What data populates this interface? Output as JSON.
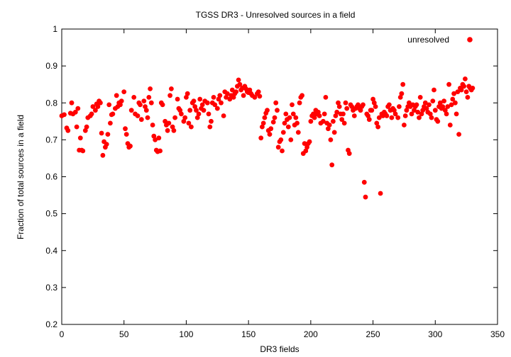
{
  "chart_data": {
    "type": "scatter",
    "title": "TGSS DR3 - Unresolved sources in a field",
    "xlabel": "DR3 fields",
    "ylabel": "Fraction of total sources in a field",
    "xlim": [
      0,
      350
    ],
    "ylim": [
      0.2,
      1
    ],
    "xticks": [
      "0",
      "50",
      "100",
      "150",
      "200",
      "250",
      "300",
      "350"
    ],
    "yticks": [
      "0.2",
      "0.3",
      "0.4",
      "0.5",
      "0.6",
      "0.7",
      "0.8",
      "0.9",
      "1"
    ],
    "grid": false,
    "legend_position": "top-right",
    "series": [
      {
        "name": "unresolved",
        "color": "#ff0000",
        "points": [
          [
            0,
            0.765
          ],
          [
            2,
            0.768
          ],
          [
            4,
            0.732
          ],
          [
            5,
            0.725
          ],
          [
            7,
            0.772
          ],
          [
            8,
            0.8
          ],
          [
            9,
            0.77
          ],
          [
            11,
            0.775
          ],
          [
            12,
            0.735
          ],
          [
            13,
            0.785
          ],
          [
            14,
            0.672
          ],
          [
            15,
            0.705
          ],
          [
            16,
            0.672
          ],
          [
            17,
            0.67
          ],
          [
            19,
            0.725
          ],
          [
            20,
            0.735
          ],
          [
            21,
            0.76
          ],
          [
            23,
            0.765
          ],
          [
            24,
            0.77
          ],
          [
            25,
            0.79
          ],
          [
            27,
            0.78
          ],
          [
            28,
            0.797
          ],
          [
            29,
            0.79
          ],
          [
            30,
            0.805
          ],
          [
            31,
            0.8
          ],
          [
            32,
            0.718
          ],
          [
            33,
            0.658
          ],
          [
            34,
            0.695
          ],
          [
            35,
            0.68
          ],
          [
            36,
            0.688
          ],
          [
            37,
            0.715
          ],
          [
            38,
            0.795
          ],
          [
            39,
            0.745
          ],
          [
            40,
            0.768
          ],
          [
            41,
            0.77
          ],
          [
            43,
            0.785
          ],
          [
            44,
            0.82
          ],
          [
            45,
            0.79
          ],
          [
            46,
            0.8
          ],
          [
            47,
            0.795
          ],
          [
            48,
            0.805
          ],
          [
            50,
            0.83
          ],
          [
            51,
            0.73
          ],
          [
            52,
            0.715
          ],
          [
            53,
            0.69
          ],
          [
            54,
            0.68
          ],
          [
            55,
            0.683
          ],
          [
            56,
            0.78
          ],
          [
            58,
            0.815
          ],
          [
            59,
            0.77
          ],
          [
            61,
            0.765
          ],
          [
            62,
            0.8
          ],
          [
            63,
            0.795
          ],
          [
            64,
            0.755
          ],
          [
            66,
            0.805
          ],
          [
            67,
            0.79
          ],
          [
            68,
            0.78
          ],
          [
            69,
            0.76
          ],
          [
            70,
            0.815
          ],
          [
            71,
            0.838
          ],
          [
            72,
            0.8
          ],
          [
            73,
            0.74
          ],
          [
            74,
            0.71
          ],
          [
            75,
            0.7
          ],
          [
            76,
            0.672
          ],
          [
            77,
            0.668
          ],
          [
            78,
            0.705
          ],
          [
            79,
            0.67
          ],
          [
            80,
            0.8
          ],
          [
            81,
            0.795
          ],
          [
            83,
            0.75
          ],
          [
            84,
            0.74
          ],
          [
            85,
            0.725
          ],
          [
            86,
            0.745
          ],
          [
            87,
            0.82
          ],
          [
            88,
            0.838
          ],
          [
            89,
            0.735
          ],
          [
            90,
            0.725
          ],
          [
            91,
            0.76
          ],
          [
            93,
            0.81
          ],
          [
            94,
            0.785
          ],
          [
            95,
            0.78
          ],
          [
            96,
            0.77
          ],
          [
            98,
            0.75
          ],
          [
            99,
            0.76
          ],
          [
            100,
            0.815
          ],
          [
            101,
            0.825
          ],
          [
            102,
            0.745
          ],
          [
            103,
            0.78
          ],
          [
            104,
            0.735
          ],
          [
            105,
            0.8
          ],
          [
            106,
            0.805
          ],
          [
            107,
            0.79
          ],
          [
            108,
            0.78
          ],
          [
            109,
            0.76
          ],
          [
            110,
            0.77
          ],
          [
            111,
            0.81
          ],
          [
            112,
            0.785
          ],
          [
            113,
            0.795
          ],
          [
            114,
            0.78
          ],
          [
            115,
            0.805
          ],
          [
            117,
            0.8
          ],
          [
            118,
            0.77
          ],
          [
            119,
            0.735
          ],
          [
            120,
            0.75
          ],
          [
            121,
            0.8
          ],
          [
            122,
            0.815
          ],
          [
            123,
            0.795
          ],
          [
            125,
            0.785
          ],
          [
            126,
            0.81
          ],
          [
            127,
            0.82
          ],
          [
            128,
            0.8
          ],
          [
            130,
            0.765
          ],
          [
            131,
            0.83
          ],
          [
            132,
            0.815
          ],
          [
            133,
            0.825
          ],
          [
            135,
            0.81
          ],
          [
            136,
            0.82
          ],
          [
            137,
            0.835
          ],
          [
            138,
            0.815
          ],
          [
            139,
            0.825
          ],
          [
            140,
            0.83
          ],
          [
            141,
            0.845
          ],
          [
            142,
            0.862
          ],
          [
            143,
            0.85
          ],
          [
            144,
            0.835
          ],
          [
            145,
            0.84
          ],
          [
            146,
            0.82
          ],
          [
            147,
            0.845
          ],
          [
            148,
            0.838
          ],
          [
            149,
            0.83
          ],
          [
            150,
            0.828
          ],
          [
            151,
            0.835
          ],
          [
            152,
            0.825
          ],
          [
            153,
            0.82
          ],
          [
            155,
            0.815
          ],
          [
            157,
            0.825
          ],
          [
            158,
            0.83
          ],
          [
            159,
            0.818
          ],
          [
            160,
            0.705
          ],
          [
            161,
            0.735
          ],
          [
            162,
            0.745
          ],
          [
            163,
            0.76
          ],
          [
            164,
            0.772
          ],
          [
            165,
            0.78
          ],
          [
            166,
            0.725
          ],
          [
            167,
            0.715
          ],
          [
            168,
            0.73
          ],
          [
            170,
            0.748
          ],
          [
            171,
            0.76
          ],
          [
            172,
            0.8
          ],
          [
            173,
            0.78
          ],
          [
            174,
            0.68
          ],
          [
            175,
            0.695
          ],
          [
            176,
            0.7
          ],
          [
            177,
            0.67
          ],
          [
            178,
            0.72
          ],
          [
            179,
            0.745
          ],
          [
            180,
            0.77
          ],
          [
            181,
            0.755
          ],
          [
            182,
            0.735
          ],
          [
            183,
            0.76
          ],
          [
            184,
            0.7
          ],
          [
            185,
            0.795
          ],
          [
            186,
            0.77
          ],
          [
            187,
            0.74
          ],
          [
            188,
            0.76
          ],
          [
            189,
            0.745
          ],
          [
            190,
            0.72
          ],
          [
            191,
            0.8
          ],
          [
            192,
            0.815
          ],
          [
            193,
            0.82
          ],
          [
            194,
            0.663
          ],
          [
            195,
            0.69
          ],
          [
            196,
            0.67
          ],
          [
            197,
            0.68
          ],
          [
            198,
            0.69
          ],
          [
            199,
            0.695
          ],
          [
            200,
            0.75
          ],
          [
            201,
            0.765
          ],
          [
            202,
            0.77
          ],
          [
            203,
            0.76
          ],
          [
            204,
            0.78
          ],
          [
            205,
            0.77
          ],
          [
            206,
            0.775
          ],
          [
            207,
            0.765
          ],
          [
            208,
            0.745
          ],
          [
            210,
            0.75
          ],
          [
            211,
            0.77
          ],
          [
            212,
            0.815
          ],
          [
            213,
            0.745
          ],
          [
            214,
            0.73
          ],
          [
            215,
            0.74
          ],
          [
            216,
            0.7
          ],
          [
            217,
            0.632
          ],
          [
            218,
            0.75
          ],
          [
            219,
            0.72
          ],
          [
            220,
            0.765
          ],
          [
            221,
            0.775
          ],
          [
            222,
            0.8
          ],
          [
            223,
            0.79
          ],
          [
            224,
            0.77
          ],
          [
            225,
            0.755
          ],
          [
            226,
            0.77
          ],
          [
            227,
            0.745
          ],
          [
            228,
            0.8
          ],
          [
            229,
            0.785
          ],
          [
            230,
            0.672
          ],
          [
            231,
            0.663
          ],
          [
            232,
            0.795
          ],
          [
            233,
            0.79
          ],
          [
            234,
            0.78
          ],
          [
            235,
            0.765
          ],
          [
            236,
            0.785
          ],
          [
            237,
            0.79
          ],
          [
            238,
            0.795
          ],
          [
            239,
            0.785
          ],
          [
            240,
            0.78
          ],
          [
            241,
            0.79
          ],
          [
            242,
            0.795
          ],
          [
            243,
            0.585
          ],
          [
            244,
            0.545
          ],
          [
            245,
            0.77
          ],
          [
            246,
            0.765
          ],
          [
            247,
            0.755
          ],
          [
            248,
            0.78
          ],
          [
            249,
            0.78
          ],
          [
            250,
            0.81
          ],
          [
            251,
            0.8
          ],
          [
            252,
            0.79
          ],
          [
            253,
            0.745
          ],
          [
            254,
            0.735
          ],
          [
            255,
            0.76
          ],
          [
            256,
            0.555
          ],
          [
            257,
            0.77
          ],
          [
            258,
            0.765
          ],
          [
            259,
            0.775
          ],
          [
            260,
            0.77
          ],
          [
            261,
            0.765
          ],
          [
            262,
            0.79
          ],
          [
            263,
            0.795
          ],
          [
            264,
            0.78
          ],
          [
            265,
            0.76
          ],
          [
            266,
            0.785
          ],
          [
            267,
            0.78
          ],
          [
            268,
            0.77
          ],
          [
            270,
            0.76
          ],
          [
            271,
            0.79
          ],
          [
            272,
            0.815
          ],
          [
            273,
            0.825
          ],
          [
            274,
            0.85
          ],
          [
            275,
            0.74
          ],
          [
            276,
            0.765
          ],
          [
            277,
            0.78
          ],
          [
            278,
            0.79
          ],
          [
            279,
            0.8
          ],
          [
            280,
            0.79
          ],
          [
            281,
            0.77
          ],
          [
            282,
            0.795
          ],
          [
            283,
            0.78
          ],
          [
            284,
            0.79
          ],
          [
            285,
            0.795
          ],
          [
            286,
            0.775
          ],
          [
            287,
            0.76
          ],
          [
            288,
            0.815
          ],
          [
            289,
            0.77
          ],
          [
            290,
            0.78
          ],
          [
            291,
            0.79
          ],
          [
            292,
            0.8
          ],
          [
            293,
            0.785
          ],
          [
            294,
            0.775
          ],
          [
            295,
            0.795
          ],
          [
            296,
            0.77
          ],
          [
            297,
            0.76
          ],
          [
            298,
            0.805
          ],
          [
            299,
            0.835
          ],
          [
            300,
            0.78
          ],
          [
            301,
            0.755
          ],
          [
            302,
            0.75
          ],
          [
            303,
            0.79
          ],
          [
            304,
            0.8
          ],
          [
            305,
            0.785
          ],
          [
            306,
            0.79
          ],
          [
            307,
            0.805
          ],
          [
            308,
            0.78
          ],
          [
            309,
            0.77
          ],
          [
            310,
            0.79
          ],
          [
            311,
            0.85
          ],
          [
            312,
            0.74
          ],
          [
            313,
            0.795
          ],
          [
            314,
            0.81
          ],
          [
            315,
            0.825
          ],
          [
            316,
            0.8
          ],
          [
            317,
            0.77
          ],
          [
            318,
            0.83
          ],
          [
            319,
            0.715
          ],
          [
            320,
            0.84
          ],
          [
            321,
            0.835
          ],
          [
            322,
            0.85
          ],
          [
            323,
            0.845
          ],
          [
            324,
            0.865
          ],
          [
            325,
            0.83
          ],
          [
            326,
            0.815
          ],
          [
            327,
            0.845
          ],
          [
            328,
            0.84
          ],
          [
            329,
            0.835
          ],
          [
            330,
            0.84
          ]
        ]
      }
    ]
  }
}
